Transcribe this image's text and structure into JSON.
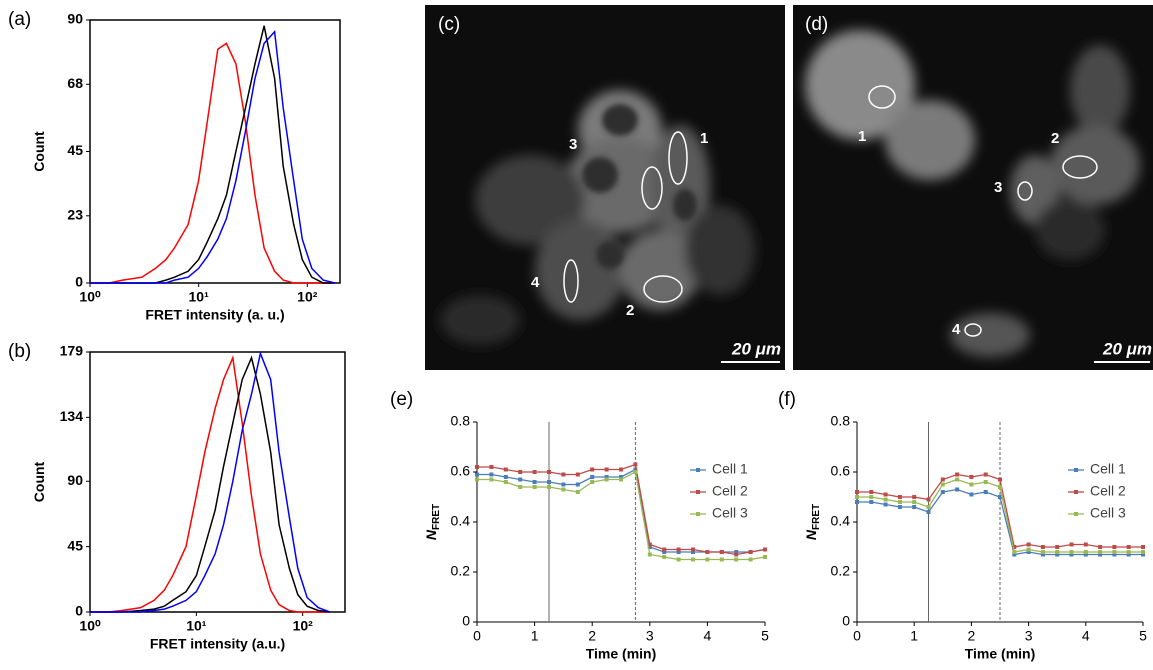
{
  "chart_data": [
    {
      "type": "line",
      "panel_label": "(a)",
      "xlabel": "FRET intensity (a. u.)",
      "ylabel": "Count",
      "xscale": "log",
      "frame": true,
      "xlim": [
        1,
        200
      ],
      "ylim": [
        0,
        90
      ],
      "xticks": [
        {
          "value": 1,
          "label": "10⁰"
        },
        {
          "value": 10,
          "label": "10¹"
        },
        {
          "value": 100,
          "label": "10²"
        }
      ],
      "yticks": [
        0,
        23,
        45,
        68,
        90
      ],
      "x": [
        1,
        1.5,
        2,
        3,
        4,
        5,
        6,
        8,
        10,
        12,
        15,
        18,
        22,
        27,
        33,
        40,
        50,
        60,
        75,
        90,
        110,
        140,
        180
      ],
      "series": [
        {
          "color": "#ff0000",
          "values": [
            0,
            0,
            1,
            2,
            5,
            8,
            12,
            20,
            35,
            55,
            80,
            82,
            75,
            55,
            30,
            12,
            4,
            1,
            0,
            0,
            0,
            0,
            0
          ]
        },
        {
          "color": "#000000",
          "values": [
            0,
            0,
            0,
            0,
            0,
            1,
            2,
            4,
            8,
            14,
            22,
            30,
            45,
            60,
            75,
            88,
            70,
            40,
            20,
            8,
            2,
            0,
            0
          ]
        },
        {
          "color": "#0000ff",
          "values": [
            0,
            0,
            0,
            0,
            0,
            0,
            1,
            2,
            5,
            9,
            15,
            22,
            35,
            52,
            70,
            82,
            86,
            60,
            35,
            15,
            5,
            1,
            0
          ]
        }
      ]
    },
    {
      "type": "line",
      "panel_label": "(b)",
      "xlabel": "FRET intensity (a.u.)",
      "ylabel": "Count",
      "xscale": "log",
      "frame": true,
      "xlim": [
        1,
        250
      ],
      "ylim": [
        0,
        179
      ],
      "xticks": [
        {
          "value": 1,
          "label": "10⁰"
        },
        {
          "value": 10,
          "label": "10¹"
        },
        {
          "value": 100,
          "label": "10²"
        }
      ],
      "yticks": [
        0,
        45,
        90,
        134,
        179
      ],
      "x": [
        1,
        1.5,
        2,
        3,
        4,
        5,
        6,
        8,
        10,
        12,
        15,
        18,
        22,
        27,
        33,
        40,
        50,
        60,
        75,
        90,
        110,
        140,
        180
      ],
      "series": [
        {
          "color": "#ff0000",
          "values": [
            0,
            0,
            1,
            3,
            8,
            15,
            25,
            45,
            80,
            110,
            140,
            160,
            175,
            130,
            80,
            40,
            15,
            5,
            1,
            0,
            0,
            0,
            0
          ]
        },
        {
          "color": "#000000",
          "values": [
            0,
            0,
            0,
            1,
            2,
            4,
            8,
            14,
            25,
            45,
            70,
            100,
            130,
            160,
            175,
            150,
            110,
            60,
            30,
            12,
            4,
            1,
            0
          ]
        },
        {
          "color": "#0000ff",
          "values": [
            0,
            0,
            0,
            0,
            1,
            2,
            4,
            8,
            14,
            25,
            40,
            60,
            90,
            125,
            150,
            178,
            160,
            110,
            65,
            30,
            10,
            3,
            0
          ]
        }
      ]
    },
    {
      "type": "line",
      "panel_label": "(e)",
      "xlabel": "Time (min)",
      "ylabel": "N",
      "ylabel_subscript": "FRET",
      "markers": true,
      "legend": "right",
      "xlim": [
        0,
        5
      ],
      "ylim": [
        0,
        0.8
      ],
      "xticks": [
        0,
        1,
        2,
        3,
        4,
        5
      ],
      "yticks": [
        0,
        0.2,
        0.4,
        0.6,
        0.8
      ],
      "vlines": [
        {
          "x": 1.25,
          "style": "solid"
        },
        {
          "x": 2.75,
          "style": "dashed"
        }
      ],
      "x": [
        0,
        0.25,
        0.5,
        0.75,
        1,
        1.25,
        1.5,
        1.75,
        2,
        2.25,
        2.5,
        2.75,
        3,
        3.25,
        3.5,
        3.75,
        4,
        4.25,
        4.5,
        4.75,
        5
      ],
      "series": [
        {
          "name": "Cell 1",
          "color": "#4a7ebb",
          "values": [
            0.59,
            0.59,
            0.58,
            0.57,
            0.56,
            0.56,
            0.55,
            0.55,
            0.58,
            0.58,
            0.58,
            0.61,
            0.3,
            0.28,
            0.28,
            0.28,
            0.28,
            0.28,
            0.28,
            0.28,
            0.29
          ]
        },
        {
          "name": "Cell 2",
          "color": "#be4b48",
          "values": [
            0.62,
            0.62,
            0.61,
            0.6,
            0.6,
            0.6,
            0.59,
            0.59,
            0.61,
            0.61,
            0.61,
            0.63,
            0.31,
            0.29,
            0.29,
            0.29,
            0.28,
            0.28,
            0.27,
            0.28,
            0.29
          ]
        },
        {
          "name": "Cell 3",
          "color": "#98b954",
          "values": [
            0.57,
            0.57,
            0.56,
            0.54,
            0.54,
            0.54,
            0.53,
            0.52,
            0.56,
            0.57,
            0.57,
            0.6,
            0.27,
            0.26,
            0.25,
            0.25,
            0.25,
            0.25,
            0.25,
            0.25,
            0.26
          ]
        }
      ]
    },
    {
      "type": "line",
      "panel_label": "(f)",
      "xlabel": "Time (min)",
      "ylabel": "N",
      "ylabel_subscript": "FRET",
      "markers": true,
      "legend": "right",
      "xlim": [
        0,
        5
      ],
      "ylim": [
        0,
        0.8
      ],
      "xticks": [
        0,
        1,
        2,
        3,
        4,
        5
      ],
      "yticks": [
        0,
        0.2,
        0.4,
        0.6,
        0.8
      ],
      "vlines": [
        {
          "x": 1.25,
          "style": "solid"
        },
        {
          "x": 2.5,
          "style": "dashed"
        }
      ],
      "x": [
        0,
        0.25,
        0.5,
        0.75,
        1,
        1.25,
        1.5,
        1.75,
        2,
        2.25,
        2.5,
        2.75,
        3,
        3.25,
        3.5,
        3.75,
        4,
        4.25,
        4.5,
        4.75,
        5
      ],
      "series": [
        {
          "name": "Cell 1",
          "color": "#4a7ebb",
          "values": [
            0.48,
            0.48,
            0.47,
            0.46,
            0.46,
            0.44,
            0.52,
            0.53,
            0.51,
            0.52,
            0.5,
            0.27,
            0.28,
            0.27,
            0.27,
            0.27,
            0.27,
            0.27,
            0.27,
            0.27,
            0.27
          ]
        },
        {
          "name": "Cell 2",
          "color": "#be4b48",
          "values": [
            0.52,
            0.52,
            0.51,
            0.5,
            0.5,
            0.49,
            0.57,
            0.59,
            0.58,
            0.59,
            0.57,
            0.3,
            0.31,
            0.3,
            0.3,
            0.31,
            0.31,
            0.3,
            0.3,
            0.3,
            0.3
          ]
        },
        {
          "name": "Cell 3",
          "color": "#98b954",
          "values": [
            0.5,
            0.5,
            0.49,
            0.48,
            0.48,
            0.46,
            0.55,
            0.57,
            0.55,
            0.56,
            0.54,
            0.28,
            0.29,
            0.28,
            0.28,
            0.28,
            0.28,
            0.28,
            0.28,
            0.28,
            0.28
          ]
        }
      ]
    }
  ],
  "images": [
    {
      "label": "(c)",
      "numbers": [
        "1",
        "2",
        "3",
        "4"
      ],
      "scale_bar": "20 μm"
    },
    {
      "label": "(d)",
      "numbers": [
        "1",
        "2",
        "3",
        "4"
      ],
      "scale_bar": "20 μm"
    }
  ]
}
